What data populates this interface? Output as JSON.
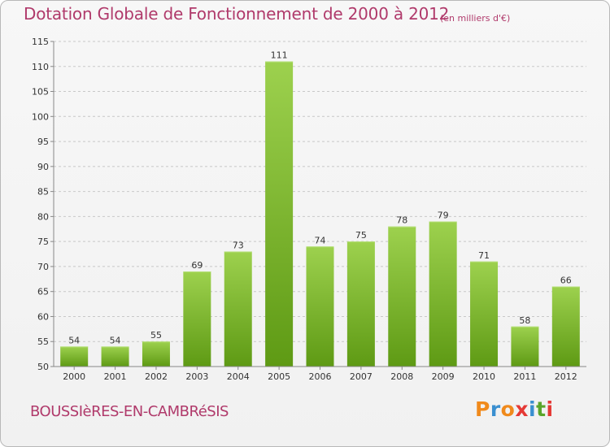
{
  "title": "Dotation Globale de Fonctionnement de 2000 à 2012",
  "subtitle": "(en milliers d'€)",
  "place_name": "BOUSSIèRES-EN-CAMBRéSIS",
  "brand": {
    "letters": [
      "P",
      "r",
      "o",
      "x",
      "i",
      "t",
      "i"
    ],
    "colors": [
      "#f08a1c",
      "#3a8fd0",
      "#f08a1c",
      "#e53935",
      "#3a8fd0",
      "#5aa52b",
      "#e53935"
    ]
  },
  "colors": {
    "title": "#b03a6b",
    "bar_top": "#9dd14e",
    "bar_bottom": "#5e9a14",
    "grid": "#c8c8c8"
  },
  "chart_data": {
    "type": "bar",
    "title": "Dotation Globale de Fonctionnement de 2000 à 2012",
    "subtitle": "(en milliers d'€)",
    "categories": [
      "2000",
      "2001",
      "2002",
      "2003",
      "2004",
      "2005",
      "2006",
      "2007",
      "2008",
      "2009",
      "2010",
      "2011",
      "2012"
    ],
    "values": [
      54,
      54,
      55,
      69,
      73,
      111,
      74,
      75,
      78,
      79,
      71,
      58,
      66
    ],
    "ylim": [
      50,
      115
    ],
    "yticks": [
      50,
      55,
      60,
      65,
      70,
      75,
      80,
      85,
      90,
      95,
      100,
      105,
      110,
      115
    ],
    "grid": true,
    "data_labels": true
  }
}
